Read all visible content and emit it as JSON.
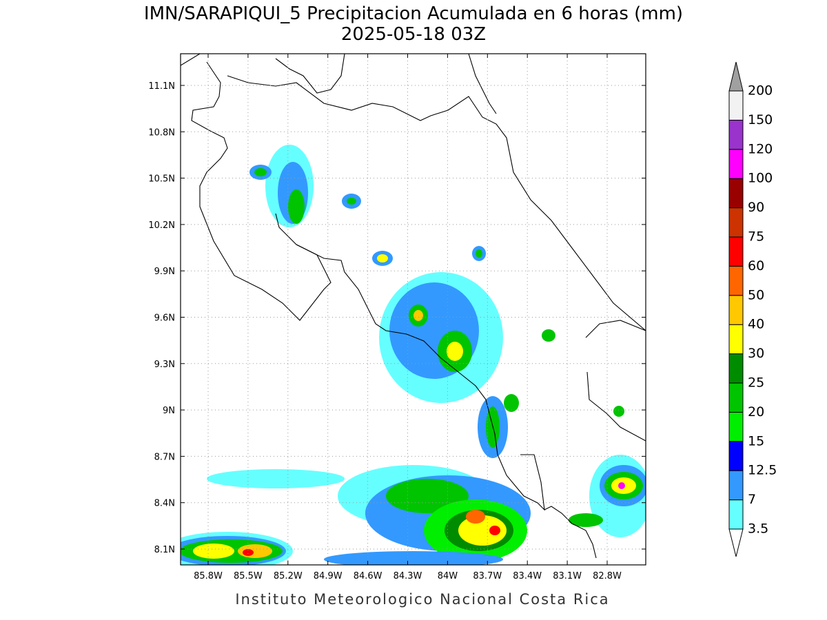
{
  "title": "IMN/SARAPIQUI_5 Precipitacion Acumulada en 6 horas (mm)",
  "subtitle": "2025-05-18 03Z",
  "lat_labels": [
    "11.1N",
    "10.8N",
    "10.5N",
    "10.2N",
    "9.9N",
    "9.6N",
    "9.3N",
    "9N",
    "8.7N",
    "8.4N",
    "8.1N"
  ],
  "lon_labels": [
    "85.8W",
    "85.5W",
    "85.2W",
    "84.9W",
    "84.6W",
    "84.3W",
    "84W",
    "83.7W",
    "83.4W",
    "83.1W",
    "82.8W"
  ],
  "colorbar": {
    "labels": [
      3.5,
      7,
      12.5,
      15,
      20,
      25,
      30,
      40,
      50,
      60,
      75,
      90,
      100,
      120,
      150,
      200
    ],
    "colors": [
      "#66ffff",
      "#3399ff",
      "#0000ff",
      "#00ee00",
      "#00c400",
      "#008c00",
      "#ffff00",
      "#ffc800",
      "#ff6600",
      "#ff0000",
      "#cc3300",
      "#990000",
      "#ff00ff",
      "#9933cc",
      "#f2f2f2"
    ]
  },
  "footer": "Instituto Meteorologico Nacional Costa Rica"
}
